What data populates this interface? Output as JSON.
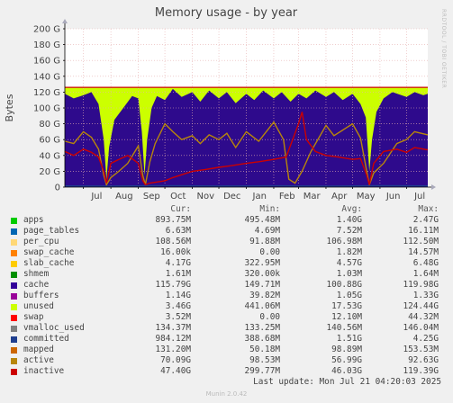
{
  "chart_data": {
    "type": "area",
    "title": "Memory usage - by year",
    "ylabel": "Bytes",
    "side_label": "RRDTOOL / TOBI OETIKER",
    "ylim": [
      0,
      200
    ],
    "yticks": [
      "0",
      "20 G",
      "40 G",
      "60 G",
      "80 G",
      "100 G",
      "120 G",
      "140 G",
      "160 G",
      "180 G",
      "200 G"
    ],
    "x_range": [
      "2024-06-10",
      "2025-07-25"
    ],
    "xticks": [
      {
        "label": "Jul",
        "date": "2024-07-01"
      },
      {
        "label": "Aug",
        "date": "2024-08-01"
      },
      {
        "label": "Sep",
        "date": "2024-09-01"
      },
      {
        "label": "Oct",
        "date": "2024-10-01"
      },
      {
        "label": "Nov",
        "date": "2024-11-01"
      },
      {
        "label": "Dec",
        "date": "2024-12-01"
      },
      {
        "label": "Jan",
        "date": "2025-01-01"
      },
      {
        "label": "Feb",
        "date": "2025-02-01"
      },
      {
        "label": "Mar",
        "date": "2025-03-01"
      },
      {
        "label": "Apr",
        "date": "2025-04-01"
      },
      {
        "label": "May",
        "date": "2025-05-01"
      },
      {
        "label": "Jun",
        "date": "2025-06-01"
      },
      {
        "label": "Jul",
        "date": "2025-07-01"
      }
    ],
    "grid": true,
    "total_top": 126,
    "series": [
      {
        "name": "cache",
        "kind": "area",
        "color": "#2E0A8C",
        "points": [
          [
            "2024-06-10",
            118
          ],
          [
            "2024-06-20",
            112
          ],
          [
            "2024-07-01",
            116
          ],
          [
            "2024-07-10",
            120
          ],
          [
            "2024-07-18",
            105
          ],
          [
            "2024-07-24",
            60
          ],
          [
            "2024-07-27",
            10
          ],
          [
            "2024-07-30",
            50
          ],
          [
            "2024-08-05",
            85
          ],
          [
            "2024-08-15",
            100
          ],
          [
            "2024-08-25",
            115
          ],
          [
            "2024-09-01",
            112
          ],
          [
            "2024-09-05",
            70
          ],
          [
            "2024-09-08",
            15
          ],
          [
            "2024-09-11",
            60
          ],
          [
            "2024-09-16",
            100
          ],
          [
            "2024-09-22",
            115
          ],
          [
            "2024-10-01",
            110
          ],
          [
            "2024-10-10",
            124
          ],
          [
            "2024-10-20",
            114
          ],
          [
            "2024-11-01",
            120
          ],
          [
            "2024-11-10",
            108
          ],
          [
            "2024-11-20",
            122
          ],
          [
            "2024-12-01",
            112
          ],
          [
            "2024-12-10",
            120
          ],
          [
            "2024-12-20",
            106
          ],
          [
            "2025-01-01",
            118
          ],
          [
            "2025-01-10",
            110
          ],
          [
            "2025-01-20",
            122
          ],
          [
            "2025-02-01",
            112
          ],
          [
            "2025-02-10",
            120
          ],
          [
            "2025-02-20",
            108
          ],
          [
            "2025-03-01",
            118
          ],
          [
            "2025-03-10",
            112
          ],
          [
            "2025-03-20",
            122
          ],
          [
            "2025-04-01",
            114
          ],
          [
            "2025-04-10",
            120
          ],
          [
            "2025-04-20",
            110
          ],
          [
            "2025-05-01",
            118
          ],
          [
            "2025-05-10",
            105
          ],
          [
            "2025-05-16",
            88
          ],
          [
            "2025-05-20",
            20
          ],
          [
            "2025-05-23",
            60
          ],
          [
            "2025-05-28",
            95
          ],
          [
            "2025-06-05",
            112
          ],
          [
            "2025-06-15",
            120
          ],
          [
            "2025-07-01",
            114
          ],
          [
            "2025-07-10",
            120
          ],
          [
            "2025-07-20",
            116
          ],
          [
            "2025-07-25",
            118
          ]
        ]
      },
      {
        "name": "active",
        "kind": "line",
        "color": "#B8860B",
        "points": [
          [
            "2024-06-10",
            58
          ],
          [
            "2024-06-20",
            55
          ],
          [
            "2024-07-01",
            70
          ],
          [
            "2024-07-10",
            63
          ],
          [
            "2024-07-18",
            48
          ],
          [
            "2024-07-24",
            15
          ],
          [
            "2024-07-27",
            3
          ],
          [
            "2024-08-01",
            12
          ],
          [
            "2024-08-10",
            20
          ],
          [
            "2024-08-20",
            30
          ],
          [
            "2024-09-01",
            52
          ],
          [
            "2024-09-06",
            15
          ],
          [
            "2024-09-09",
            3
          ],
          [
            "2024-09-14",
            32
          ],
          [
            "2024-09-20",
            55
          ],
          [
            "2024-10-01",
            80
          ],
          [
            "2024-10-10",
            70
          ],
          [
            "2024-10-20",
            60
          ],
          [
            "2024-11-01",
            65
          ],
          [
            "2024-11-10",
            55
          ],
          [
            "2024-11-20",
            66
          ],
          [
            "2024-12-01",
            60
          ],
          [
            "2024-12-10",
            68
          ],
          [
            "2024-12-20",
            50
          ],
          [
            "2025-01-01",
            70
          ],
          [
            "2025-01-15",
            58
          ],
          [
            "2025-02-01",
            82
          ],
          [
            "2025-02-12",
            60
          ],
          [
            "2025-02-18",
            10
          ],
          [
            "2025-02-25",
            5
          ],
          [
            "2025-03-05",
            20
          ],
          [
            "2025-03-15",
            45
          ],
          [
            "2025-04-01",
            78
          ],
          [
            "2025-04-10",
            65
          ],
          [
            "2025-04-20",
            72
          ],
          [
            "2025-05-01",
            80
          ],
          [
            "2025-05-10",
            62
          ],
          [
            "2025-05-17",
            20
          ],
          [
            "2025-05-20",
            3
          ],
          [
            "2025-05-25",
            18
          ],
          [
            "2025-06-05",
            30
          ],
          [
            "2025-06-20",
            55
          ],
          [
            "2025-07-01",
            60
          ],
          [
            "2025-07-10",
            70
          ],
          [
            "2025-07-25",
            66
          ]
        ]
      },
      {
        "name": "inactive",
        "kind": "line",
        "color": "#CC0000",
        "points": [
          [
            "2024-06-10",
            45
          ],
          [
            "2024-06-20",
            40
          ],
          [
            "2024-07-01",
            48
          ],
          [
            "2024-07-10",
            44
          ],
          [
            "2024-07-18",
            38
          ],
          [
            "2024-07-24",
            20
          ],
          [
            "2024-07-27",
            5
          ],
          [
            "2024-08-01",
            30
          ],
          [
            "2024-08-10",
            35
          ],
          [
            "2024-08-20",
            40
          ],
          [
            "2024-09-01",
            30
          ],
          [
            "2024-09-06",
            8
          ],
          [
            "2024-09-09",
            3
          ],
          [
            "2024-09-14",
            5
          ],
          [
            "2024-09-20",
            6
          ],
          [
            "2024-10-01",
            8
          ],
          [
            "2024-10-10",
            12
          ],
          [
            "2024-11-01",
            20
          ],
          [
            "2024-11-15",
            22
          ],
          [
            "2024-12-01",
            25
          ],
          [
            "2024-12-15",
            27
          ],
          [
            "2025-01-01",
            30
          ],
          [
            "2025-01-15",
            32
          ],
          [
            "2025-02-01",
            35
          ],
          [
            "2025-02-15",
            38
          ],
          [
            "2025-03-01",
            80
          ],
          [
            "2025-03-05",
            95
          ],
          [
            "2025-03-10",
            60
          ],
          [
            "2025-03-20",
            45
          ],
          [
            "2025-04-01",
            40
          ],
          [
            "2025-04-15",
            38
          ],
          [
            "2025-05-01",
            35
          ],
          [
            "2025-05-10",
            36
          ],
          [
            "2025-05-17",
            15
          ],
          [
            "2025-05-20",
            3
          ],
          [
            "2025-05-25",
            30
          ],
          [
            "2025-06-05",
            45
          ],
          [
            "2025-06-20",
            48
          ],
          [
            "2025-07-01",
            44
          ],
          [
            "2025-07-10",
            50
          ],
          [
            "2025-07-25",
            47
          ]
        ]
      },
      {
        "name": "committed",
        "kind": "line",
        "color": "#1F3F8F",
        "points": [
          [
            "2024-06-10",
            1.5
          ],
          [
            "2024-08-01",
            1.2
          ],
          [
            "2024-10-01",
            1.8
          ],
          [
            "2024-12-01",
            1.4
          ],
          [
            "2025-02-01",
            1.6
          ],
          [
            "2025-04-01",
            1.3
          ],
          [
            "2025-06-01",
            1.7
          ],
          [
            "2025-07-25",
            1.5
          ]
        ]
      }
    ]
  },
  "legend": {
    "headers": {
      "cur": "Cur:",
      "min": "Min:",
      "avg": "Avg:",
      "max": "Max:"
    },
    "rows": [
      {
        "name": "apps",
        "color": "#00CC00",
        "cur": "893.75M",
        "min": "495.48M",
        "avg": "1.40G",
        "max": "2.47G"
      },
      {
        "name": "page_tables",
        "color": "#0066B3",
        "cur": "6.63M",
        "min": "4.69M",
        "avg": "7.52M",
        "max": "16.11M"
      },
      {
        "name": "per_cpu",
        "color": "#FFD877",
        "cur": "108.56M",
        "min": "91.88M",
        "avg": "106.98M",
        "max": "112.50M"
      },
      {
        "name": "swap_cache",
        "color": "#FF8000",
        "cur": "16.00k",
        "min": "0.00",
        "avg": "1.82M",
        "max": "14.57M"
      },
      {
        "name": "slab_cache",
        "color": "#FFCC00",
        "cur": "4.17G",
        "min": "322.95M",
        "avg": "4.57G",
        "max": "6.48G"
      },
      {
        "name": "shmem",
        "color": "#008F00",
        "cur": "1.61M",
        "min": "320.00k",
        "avg": "1.03M",
        "max": "1.64M"
      },
      {
        "name": "cache",
        "color": "#330099",
        "cur": "115.79G",
        "min": "149.71M",
        "avg": "100.88G",
        "max": "119.98G"
      },
      {
        "name": "buffers",
        "color": "#990099",
        "cur": "1.14G",
        "min": "39.82M",
        "avg": "1.05G",
        "max": "1.33G"
      },
      {
        "name": "unused",
        "color": "#CCFF00",
        "cur": "3.46G",
        "min": "441.06M",
        "avg": "17.53G",
        "max": "124.44G"
      },
      {
        "name": "swap",
        "color": "#FF0000",
        "cur": "3.52M",
        "min": "0.00",
        "avg": "12.10M",
        "max": "44.32M"
      },
      {
        "name": "vmalloc_used",
        "color": "#808080",
        "cur": "134.37M",
        "min": "133.25M",
        "avg": "140.56M",
        "max": "146.04M"
      },
      {
        "name": "committed",
        "color": "#1F3F8F",
        "cur": "984.12M",
        "min": "388.68M",
        "avg": "1.51G",
        "max": "4.25G"
      },
      {
        "name": "mapped",
        "color": "#CC6600",
        "cur": "131.20M",
        "min": "50.18M",
        "avg": "98.89M",
        "max": "153.53M"
      },
      {
        "name": "active",
        "color": "#B8860B",
        "cur": "70.09G",
        "min": "98.53M",
        "avg": "56.99G",
        "max": "92.63G"
      },
      {
        "name": "inactive",
        "color": "#CC0000",
        "cur": "47.40G",
        "min": "299.77M",
        "avg": "46.03G",
        "max": "119.39G"
      }
    ]
  },
  "last_update": "Last update: Mon Jul 21 04:20:03 2025",
  "footer": "Munin 2.0.42",
  "colors": {
    "plot_background": "#FFFFFF",
    "grid": "#E6B0B0",
    "unused_fill": "#CCFF00",
    "total_line": "#CC0000",
    "axis": "#000000"
  }
}
